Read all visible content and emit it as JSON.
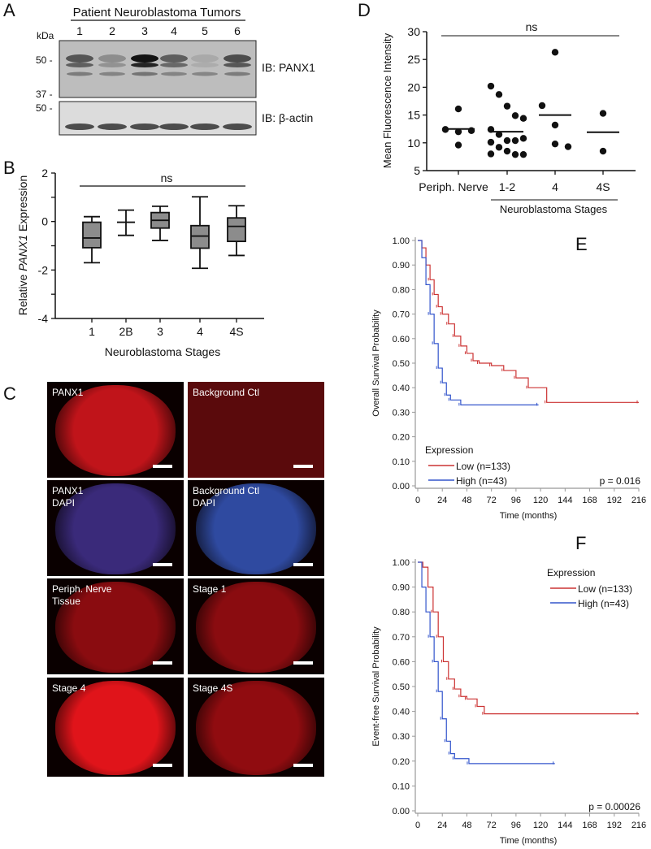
{
  "panels": {
    "a": "A",
    "b": "B",
    "c": "C",
    "d": "D",
    "e": "E",
    "f": "F"
  },
  "panel_a": {
    "title": "Patient Neuroblastoma Tumors",
    "lanes": [
      "1",
      "2",
      "3",
      "4",
      "5",
      "6"
    ],
    "kda_label": "kDa",
    "markers_top": [
      "50 -",
      "37 -"
    ],
    "markers_bottom": [
      "50 -"
    ],
    "ib_top": "IB: PANX1",
    "ib_bottom": "IB: β-actin"
  },
  "panel_c": {
    "images": [
      {
        "label": "PANX1",
        "color": "#c0141a"
      },
      {
        "label": "Background Ctl",
        "color": "#4a0808"
      },
      {
        "label": "PANX1\nDAPI",
        "color": "#3a2a7a"
      },
      {
        "label": "Background Ctl\nDAPI",
        "color": "#2f4aa0"
      },
      {
        "label": "Periph. Nerve\nTissue",
        "color": "#8a0c10"
      },
      {
        "label": "Stage 1",
        "color": "#8a0c10"
      },
      {
        "label": "Stage 4",
        "color": "#e0141a"
      },
      {
        "label": "Stage 4S",
        "color": "#900c10"
      }
    ]
  },
  "chart_data": [
    {
      "panel": "B",
      "type": "box",
      "xlabel": "Neuroblastoma Stages",
      "ylabel_pre": "Relative ",
      "ylabel_italic": "PANX1",
      "ylabel_post": " Expression",
      "ylim": [
        -4,
        2
      ],
      "yticks": [
        "2",
        "0",
        "-2",
        "-4"
      ],
      "significance": "ns",
      "categories": [
        "1",
        "2B",
        "3",
        "4",
        "4S"
      ],
      "boxes": [
        {
          "min": -1.7,
          "q1": -1.08,
          "median": -0.68,
          "q3": -0.03,
          "max": 0.2
        },
        {
          "min": -0.57,
          "q1": null,
          "median": -0.03,
          "q3": null,
          "max": 0.47
        },
        {
          "min": -0.78,
          "q1": -0.27,
          "median": 0.05,
          "q3": 0.37,
          "max": 0.63
        },
        {
          "min": -1.93,
          "q1": -1.1,
          "median": -0.6,
          "q3": -0.17,
          "max": 1.02
        },
        {
          "min": -1.4,
          "q1": -0.82,
          "median": -0.2,
          "q3": 0.15,
          "max": 0.65
        }
      ],
      "box_color": "#8c8c8c"
    },
    {
      "panel": "D",
      "type": "scatter",
      "ylabel": "Mean Fluorescence Intensity",
      "ylim": [
        5,
        30
      ],
      "yticks": [
        "30",
        "25",
        "20",
        "15",
        "10",
        "5"
      ],
      "significance": "ns",
      "group_label": "Neuroblastoma Stages",
      "categories": [
        "Periph. Nerve",
        "1-2",
        "4",
        "4S"
      ],
      "points": [
        [
          16.1,
          12.4,
          12.0,
          12.2,
          9.6
        ],
        [
          20.2,
          18.7,
          16.6,
          14.9,
          14.4,
          12.4,
          11.5,
          10.4,
          10.4,
          10.8,
          10.1,
          9.2,
          8.5,
          7.9,
          7.9,
          8.0
        ],
        [
          26.3,
          16.7,
          13.2,
          9.3,
          9.8
        ],
        [
          15.3,
          8.5
        ]
      ],
      "means": [
        12.5,
        12.0,
        15.0,
        11.9
      ]
    },
    {
      "panel": "E",
      "type": "line",
      "ylabel": "Overall Survival Probability",
      "xlabel": "Time (months)",
      "xlim": [
        0,
        216
      ],
      "ylim": [
        0,
        1
      ],
      "xticks": [
        "0",
        "24",
        "48",
        "72",
        "96",
        "120",
        "144",
        "168",
        "192",
        "216"
      ],
      "yticks": [
        "1.00",
        "0.90",
        "0.80",
        "0.70",
        "0.60",
        "0.50",
        "0.40",
        "0.30",
        "0.20",
        "0.10",
        "0.00"
      ],
      "legend_title": "Expression",
      "legend": "bottom-left",
      "pvalue": "p = 0.016",
      "series": [
        {
          "name": "Low (n=133)",
          "color": "#cc3333",
          "x": [
            0,
            4,
            8,
            12,
            16,
            20,
            24,
            30,
            36,
            42,
            48,
            54,
            60,
            72,
            84,
            96,
            108,
            126,
            216
          ],
          "y": [
            1.0,
            0.97,
            0.9,
            0.84,
            0.78,
            0.73,
            0.7,
            0.66,
            0.61,
            0.57,
            0.54,
            0.51,
            0.5,
            0.49,
            0.47,
            0.44,
            0.4,
            0.34,
            0.34
          ]
        },
        {
          "name": "High (n=43)",
          "color": "#3355cc",
          "x": [
            0,
            4,
            8,
            12,
            16,
            20,
            24,
            28,
            32,
            42,
            118
          ],
          "y": [
            1.0,
            0.93,
            0.82,
            0.7,
            0.58,
            0.48,
            0.42,
            0.37,
            0.35,
            0.33,
            0.33
          ]
        }
      ]
    },
    {
      "panel": "F",
      "type": "line",
      "ylabel": "Event-free Survival Probability",
      "xlabel": "Time (months)",
      "xlim": [
        0,
        216
      ],
      "ylim": [
        0,
        1
      ],
      "xticks": [
        "0",
        "24",
        "48",
        "72",
        "96",
        "120",
        "144",
        "168",
        "192",
        "216"
      ],
      "yticks": [
        "1.00",
        "0.90",
        "0.80",
        "0.70",
        "0.60",
        "0.50",
        "0.40",
        "0.30",
        "0.20",
        "0.10",
        "0.00"
      ],
      "legend_title": "Expression",
      "legend": "top-right",
      "pvalue": "p = 0.00026",
      "series": [
        {
          "name": "Low (n=133)",
          "color": "#cc3333",
          "x": [
            0,
            5,
            10,
            15,
            20,
            25,
            30,
            36,
            42,
            48,
            58,
            65,
            216
          ],
          "y": [
            1.0,
            0.98,
            0.9,
            0.8,
            0.7,
            0.6,
            0.53,
            0.49,
            0.46,
            0.45,
            0.42,
            0.39,
            0.39
          ]
        },
        {
          "name": "High (n=43)",
          "color": "#3355cc",
          "x": [
            0,
            4,
            8,
            12,
            16,
            20,
            24,
            28,
            32,
            36,
            50,
            134
          ],
          "y": [
            1.0,
            0.9,
            0.8,
            0.7,
            0.6,
            0.48,
            0.37,
            0.28,
            0.23,
            0.21,
            0.19,
            0.19
          ]
        }
      ]
    }
  ]
}
